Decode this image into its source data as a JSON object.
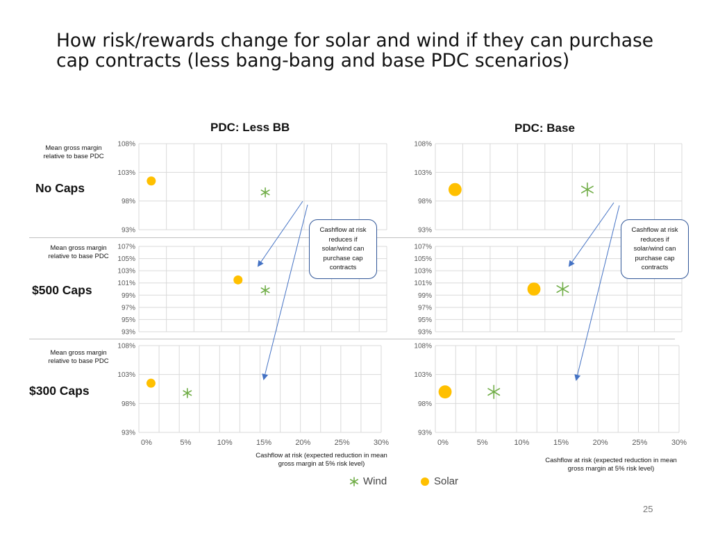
{
  "slide": {
    "title": "How risk/rewards change for solar and wind if they can purchase cap contracts (less bang-bang and base PDC scenarios)",
    "page_number": "25",
    "column_titles": [
      "PDC: Less BB",
      "PDC: Base"
    ],
    "row_labels": [
      "No Caps",
      "$500 Caps",
      "$300 Caps"
    ],
    "y_axis_label": "Mean gross margin relative to base PDC",
    "x_axis_label": "Cashflow at risk (expected reduction in mean gross margin at 5% risk level)",
    "callout_text": "Cashflow at risk reduces if solar/wind can purchase cap contracts",
    "legend": {
      "wind": "Wind",
      "solar": "Solar"
    },
    "colors": {
      "wind": "#70ad47",
      "solar": "#ffc000",
      "arrow": "#4472c4",
      "grid": "#d9d9d9"
    }
  },
  "chart_data": [
    {
      "type": "scatter",
      "panel": "PDC: Less BB - No Caps",
      "x_ticks": [],
      "y_ticks": [
        "93%",
        "98%",
        "103%",
        "108%"
      ],
      "ylim": [
        0.93,
        1.08
      ],
      "xlim": [
        0,
        0.3
      ],
      "series": [
        {
          "name": "Wind",
          "marker": "star",
          "x": [
            0.153
          ],
          "y": [
            0.995
          ]
        },
        {
          "name": "Solar",
          "marker": "circle",
          "x": [
            0.015
          ],
          "y": [
            1.015
          ]
        }
      ]
    },
    {
      "type": "scatter",
      "panel": "PDC: Base - No Caps",
      "x_ticks": [],
      "y_ticks": [
        "93%",
        "98%",
        "103%",
        "108%"
      ],
      "ylim": [
        0.93,
        1.08
      ],
      "xlim": [
        0,
        0.3
      ],
      "series": [
        {
          "name": "Wind",
          "marker": "star",
          "x": [
            0.185
          ],
          "y": [
            1.0
          ]
        },
        {
          "name": "Solar",
          "marker": "circle",
          "x": [
            0.024
          ],
          "y": [
            1.0
          ]
        }
      ]
    },
    {
      "type": "scatter",
      "panel": "PDC: Less BB - $500 Caps",
      "x_ticks": [],
      "y_ticks": [
        "93%",
        "95%",
        "97%",
        "99%",
        "101%",
        "103%",
        "105%",
        "107%"
      ],
      "ylim": [
        0.93,
        1.07
      ],
      "xlim": [
        0,
        0.3
      ],
      "series": [
        {
          "name": "Wind",
          "marker": "star",
          "x": [
            0.153
          ],
          "y": [
            0.998
          ]
        },
        {
          "name": "Solar",
          "marker": "circle",
          "x": [
            0.12
          ],
          "y": [
            1.015
          ]
        }
      ]
    },
    {
      "type": "scatter",
      "panel": "PDC: Base - $500 Caps",
      "x_ticks": [],
      "y_ticks": [
        "93%",
        "95%",
        "97%",
        "99%",
        "101%",
        "103%",
        "105%",
        "107%"
      ],
      "ylim": [
        0.93,
        1.07
      ],
      "xlim": [
        0,
        0.3
      ],
      "series": [
        {
          "name": "Wind",
          "marker": "star",
          "x": [
            0.155
          ],
          "y": [
            1.0
          ]
        },
        {
          "name": "Solar",
          "marker": "circle",
          "x": [
            0.12
          ],
          "y": [
            1.0
          ]
        }
      ]
    },
    {
      "type": "scatter",
      "panel": "PDC: Less BB - $300 Caps",
      "x_ticks": [
        "0%",
        "5%",
        "10%",
        "15%",
        "20%",
        "25%",
        "30%"
      ],
      "y_ticks": [
        "93%",
        "98%",
        "103%",
        "108%"
      ],
      "ylim": [
        0.93,
        1.08
      ],
      "xlim": [
        0,
        0.3
      ],
      "series": [
        {
          "name": "Wind",
          "marker": "star",
          "x": [
            0.06
          ],
          "y": [
            0.998
          ]
        },
        {
          "name": "Solar",
          "marker": "circle",
          "x": [
            0.015
          ],
          "y": [
            1.015
          ]
        }
      ]
    },
    {
      "type": "scatter",
      "panel": "PDC: Base - $300 Caps",
      "x_ticks": [
        "0%",
        "5%",
        "10%",
        "15%",
        "20%",
        "25%",
        "30%"
      ],
      "y_ticks": [
        "93%",
        "98%",
        "103%",
        "108%"
      ],
      "ylim": [
        0.93,
        1.08
      ],
      "xlim": [
        0,
        0.3
      ],
      "series": [
        {
          "name": "Wind",
          "marker": "star",
          "x": [
            0.072
          ],
          "y": [
            1.0
          ]
        },
        {
          "name": "Solar",
          "marker": "circle",
          "x": [
            0.012
          ],
          "y": [
            1.0
          ]
        }
      ]
    }
  ]
}
